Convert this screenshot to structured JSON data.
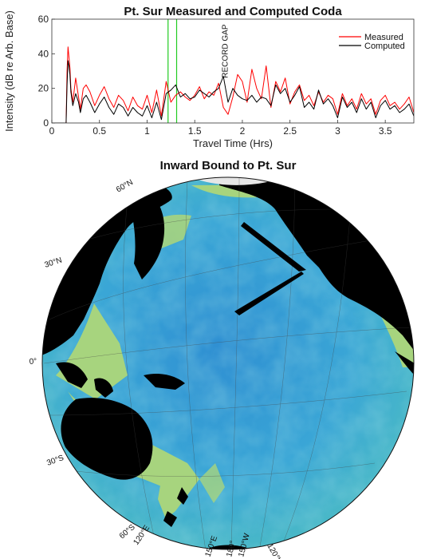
{
  "chart_data": [
    {
      "type": "line",
      "title": "Pt. Sur Measured and Computed Coda",
      "xlabel": "Travel Time (Hrs)",
      "ylabel": "Intensity (dB re Arb. Base)",
      "xlim": [
        0,
        3.8
      ],
      "ylim": [
        0,
        60
      ],
      "xticks": [
        "0",
        "0.5",
        "1",
        "1.5",
        "2",
        "2.5",
        "3",
        "3.5"
      ],
      "xtick_values": [
        0,
        0.5,
        1,
        1.5,
        2,
        2.5,
        3,
        3.5
      ],
      "yticks": [
        "0",
        "20",
        "40",
        "60"
      ],
      "ytick_values": [
        0,
        20,
        40,
        60
      ],
      "grid": false,
      "legend_position": "top-right",
      "vertical_markers": [
        1.22,
        1.31
      ],
      "marker_color": "#22cc22",
      "annotation": {
        "text": "RECORD GAP",
        "x": 1.82,
        "y": 57
      },
      "series": [
        {
          "name": "Measured",
          "color": "#ff0000",
          "x": [
            0.0,
            0.15,
            0.16,
            0.17,
            0.18,
            0.19,
            0.2,
            0.22,
            0.25,
            0.28,
            0.3,
            0.33,
            0.36,
            0.4,
            0.45,
            0.5,
            0.55,
            0.6,
            0.65,
            0.7,
            0.75,
            0.8,
            0.85,
            0.9,
            0.95,
            1.0,
            1.05,
            1.1,
            1.15,
            1.2,
            1.25,
            1.3,
            1.35,
            1.4,
            1.45,
            1.5,
            1.55,
            1.6,
            1.65,
            1.7,
            1.75,
            1.8,
            1.85,
            1.9,
            1.95,
            2.0,
            2.05,
            2.1,
            2.15,
            2.2,
            2.25,
            2.3,
            2.35,
            2.4,
            2.45,
            2.5,
            2.55,
            2.6,
            2.65,
            2.7,
            2.75,
            2.8,
            2.85,
            2.9,
            2.95,
            3.0,
            3.05,
            3.1,
            3.15,
            3.2,
            3.25,
            3.3,
            3.35,
            3.4,
            3.45,
            3.5,
            3.55,
            3.6,
            3.65,
            3.7,
            3.75,
            3.8
          ],
          "y": [
            0,
            0,
            30,
            44,
            38,
            32,
            20,
            12,
            26,
            15,
            8,
            20,
            22,
            18,
            10,
            16,
            21,
            14,
            9,
            16,
            13,
            7,
            15,
            10,
            8,
            16,
            6,
            19,
            4,
            24,
            12,
            16,
            18,
            15,
            13,
            16,
            21,
            14,
            18,
            16,
            23,
            9,
            5,
            15,
            28,
            24,
            12,
            31,
            20,
            14,
            33,
            9,
            24,
            18,
            26,
            11,
            18,
            22,
            13,
            16,
            10,
            18,
            12,
            16,
            14,
            5,
            17,
            10,
            14,
            8,
            17,
            11,
            14,
            5,
            13,
            16,
            10,
            12,
            8,
            11,
            15,
            6
          ]
        },
        {
          "name": "Computed",
          "color": "#000000",
          "x": [
            0.0,
            0.15,
            0.16,
            0.17,
            0.18,
            0.19,
            0.2,
            0.22,
            0.25,
            0.28,
            0.3,
            0.33,
            0.36,
            0.4,
            0.45,
            0.5,
            0.55,
            0.6,
            0.65,
            0.7,
            0.75,
            0.8,
            0.85,
            0.9,
            0.95,
            1.0,
            1.05,
            1.1,
            1.15,
            1.2,
            1.25,
            1.3,
            1.35,
            1.4,
            1.45,
            1.5,
            1.55,
            1.6,
            1.65,
            1.7,
            1.75,
            1.8,
            1.85,
            1.9,
            1.95,
            2.0,
            2.05,
            2.1,
            2.15,
            2.2,
            2.25,
            2.3,
            2.35,
            2.4,
            2.45,
            2.5,
            2.55,
            2.6,
            2.65,
            2.7,
            2.75,
            2.8,
            2.85,
            2.9,
            2.95,
            3.0,
            3.05,
            3.1,
            3.15,
            3.2,
            3.25,
            3.3,
            3.35,
            3.4,
            3.45,
            3.5,
            3.55,
            3.6,
            3.65,
            3.7,
            3.75,
            3.8
          ],
          "y": [
            0,
            0,
            22,
            36,
            33,
            28,
            18,
            10,
            17,
            12,
            6,
            14,
            16,
            12,
            6,
            11,
            15,
            9,
            5,
            11,
            9,
            4,
            9,
            6,
            4,
            10,
            3,
            12,
            2,
            17,
            19,
            22,
            15,
            17,
            14,
            15,
            19,
            17,
            15,
            18,
            20,
            27,
            12,
            20,
            16,
            14,
            13,
            16,
            12,
            15,
            14,
            10,
            22,
            17,
            20,
            12,
            16,
            21,
            9,
            12,
            8,
            19,
            11,
            14,
            10,
            3,
            15,
            9,
            12,
            6,
            14,
            8,
            12,
            3,
            10,
            13,
            8,
            10,
            6,
            8,
            11,
            4
          ]
        }
      ]
    },
    {
      "type": "map",
      "title": "Inward Bound to Pt. Sur",
      "lat_labels": [
        "60°N",
        "30°N",
        "0°",
        "30°S",
        "60°S"
      ],
      "lon_labels": [
        "120°E",
        "150°E",
        "180°",
        "150°W",
        "120°W"
      ],
      "colors": {
        "land": "#000000",
        "shelf": "#a7d47e",
        "deep": "#2f8fd2",
        "mid": "#3fb3cf",
        "rim": "#e6e6e6"
      }
    }
  ]
}
